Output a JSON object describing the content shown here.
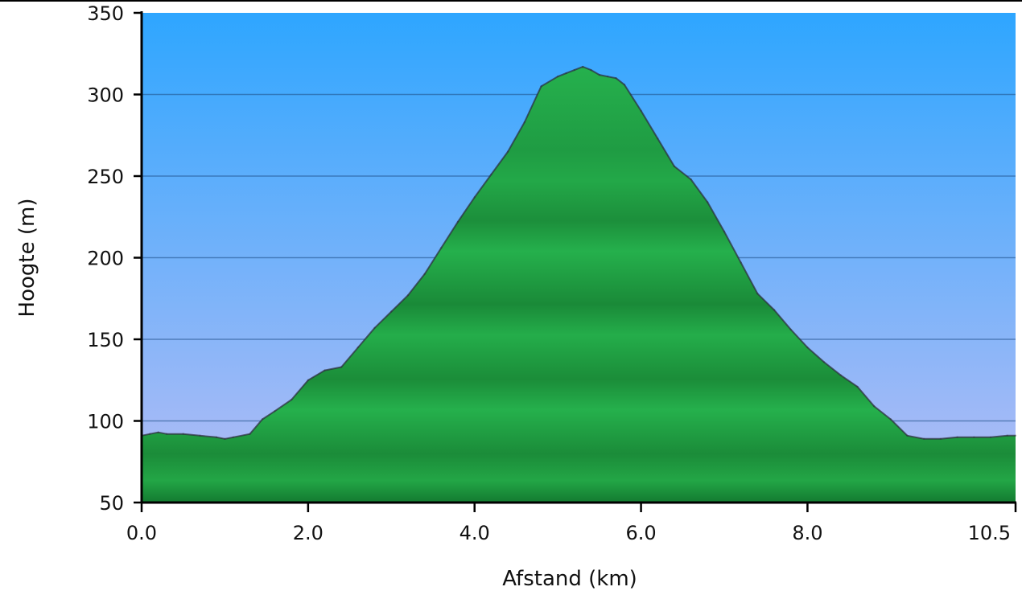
{
  "chart_data": {
    "type": "area",
    "title": "",
    "xlabel": "Afstand (km)",
    "ylabel": "Hoogte (m)",
    "xlim": [
      0,
      10.5
    ],
    "ylim": [
      50,
      350
    ],
    "x_ticks": [
      "0.0",
      "2.0",
      "4.0",
      "6.0",
      "8.0",
      "10.5"
    ],
    "x_tick_values": [
      0,
      2,
      4,
      6,
      8,
      10.5
    ],
    "y_ticks": [
      "50",
      "100",
      "150",
      "200",
      "250",
      "300",
      "350"
    ],
    "y_tick_values": [
      50,
      100,
      150,
      200,
      250,
      300,
      350
    ],
    "grid": "horizontal",
    "colors": {
      "sky_top": "#2ea6ff",
      "sky_bottom": "#b7bdf5",
      "fill_light": "#25b04c",
      "fill_dark": "#137a30",
      "outline": "#2b2b3a"
    },
    "series": [
      {
        "x": [
          0.0,
          0.1,
          0.2,
          0.3,
          0.5,
          0.7,
          0.9,
          1.0,
          1.1,
          1.3,
          1.45,
          1.6,
          1.8,
          2.0,
          2.2,
          2.4,
          2.6,
          2.8,
          3.0,
          3.2,
          3.4,
          3.6,
          3.8,
          4.0,
          4.2,
          4.4,
          4.6,
          4.8,
          5.0,
          5.1,
          5.2,
          5.3,
          5.4,
          5.5,
          5.6,
          5.7,
          5.8,
          6.0,
          6.2,
          6.4,
          6.6,
          6.8,
          7.0,
          7.2,
          7.4,
          7.6,
          7.8,
          8.0,
          8.2,
          8.4,
          8.6,
          8.8,
          9.0,
          9.2,
          9.4,
          9.6,
          9.8,
          10.0,
          10.2,
          10.4,
          10.5
        ],
        "y": [
          91,
          92,
          93,
          92,
          92,
          91,
          90,
          89,
          90,
          92,
          101,
          106,
          113,
          125,
          131,
          133,
          145,
          157,
          167,
          177,
          190,
          206,
          222,
          237,
          251,
          265,
          283,
          305,
          311,
          313,
          315,
          317,
          315,
          312,
          311,
          310,
          306,
          290,
          273,
          256,
          248,
          234,
          216,
          197,
          178,
          168,
          156,
          145,
          136,
          128,
          121,
          109,
          101,
          91,
          89,
          89,
          90,
          90,
          90,
          91,
          91
        ]
      }
    ]
  }
}
